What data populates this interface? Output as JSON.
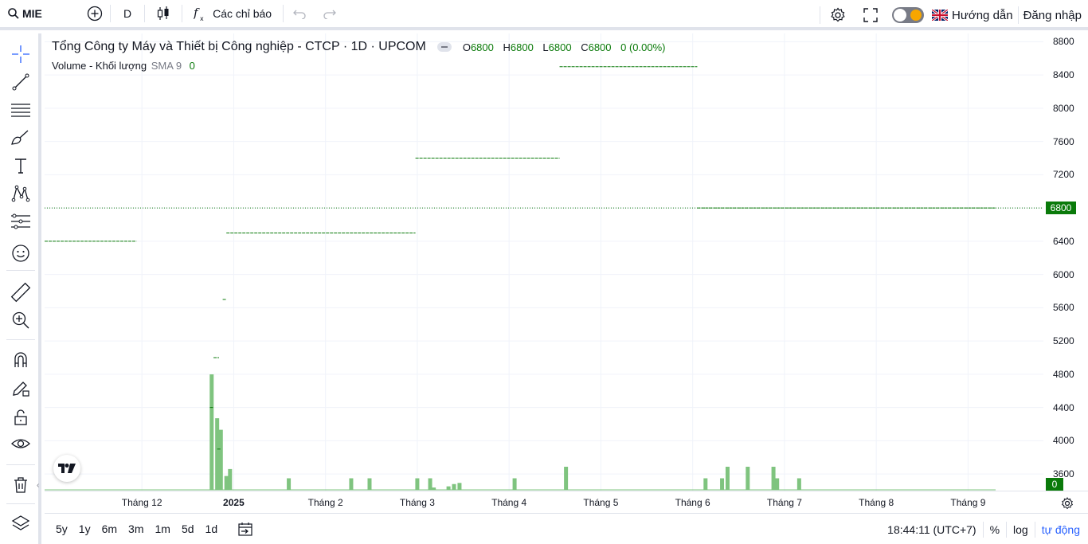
{
  "toolbar": {
    "symbol": "MIE",
    "interval": "D",
    "indicators_label": "Các chỉ báo",
    "guide_label": "Hướng dẫn",
    "login_label": "Đăng nhập"
  },
  "legend": {
    "title": "Tổng Công ty Máy và Thiết bị Công nghiệp - CTCP · 1D · UPCOM",
    "o_label": "O",
    "o_value": "6800",
    "h_label": "H",
    "h_value": "6800",
    "l_label": "L",
    "l_value": "6800",
    "c_label": "C",
    "c_value": "6800",
    "change": "0 (0.00%)",
    "volume_label": "Volume - Khối lượng",
    "sma_label": "SMA 9",
    "volume_value": "0"
  },
  "bottom": {
    "ranges": [
      "5y",
      "1y",
      "6m",
      "3m",
      "1m",
      "5d",
      "1d"
    ],
    "time": "18:44:11 (UTC+7)",
    "percent_label": "%",
    "log_label": "log",
    "auto_label": "tự động"
  },
  "colors": {
    "up": "#0a7a0a",
    "volume": "#7fc47f",
    "grid": "#f0f3fa"
  },
  "chart_data": {
    "type": "bar",
    "price_axis": {
      "ticks": [
        "8800",
        "8400",
        "8000",
        "7600",
        "7200",
        "6800",
        "6400",
        "6000",
        "5600",
        "5200",
        "4800",
        "4400",
        "4000",
        "3600"
      ],
      "last_price": "6800",
      "last_volume": "0",
      "ylim": [
        3400,
        8900
      ]
    },
    "time_axis": {
      "ticks": [
        "Tháng 12",
        "2025",
        "Tháng 2",
        "Tháng 3",
        "Tháng 4",
        "Tháng 5",
        "Tháng 6",
        "Tháng 7",
        "Tháng 8",
        "Tháng 9"
      ],
      "tick_positions": [
        0,
        1,
        2,
        3,
        4,
        5,
        6,
        7,
        8,
        9
      ],
      "range_months": [
        -1.06,
        9.3
      ]
    },
    "price_segments": [
      {
        "from": -1.06,
        "to": -0.06,
        "price": 6400
      },
      {
        "from": 0.82,
        "to": 0.86,
        "price": 3900
      },
      {
        "from": 0.74,
        "to": 0.78,
        "price": 4400
      },
      {
        "from": 0.78,
        "to": 0.84,
        "price": 5000
      },
      {
        "from": 0.88,
        "to": 0.92,
        "price": 5700
      },
      {
        "from": 0.92,
        "to": 2.98,
        "price": 6500
      },
      {
        "from": 2.98,
        "to": 4.55,
        "price": 7400
      },
      {
        "from": 4.55,
        "to": 6.05,
        "price": 8500
      },
      {
        "from": 6.05,
        "to": 9.3,
        "price": 6800
      }
    ],
    "volume_bars": [
      {
        "x": 0.76,
        "v": 100
      },
      {
        "x": 0.82,
        "v": 62
      },
      {
        "x": 0.86,
        "v": 52
      },
      {
        "x": 0.92,
        "v": 12
      },
      {
        "x": 0.96,
        "v": 18
      },
      {
        "x": 1.6,
        "v": 10
      },
      {
        "x": 2.28,
        "v": 10
      },
      {
        "x": 2.48,
        "v": 10
      },
      {
        "x": 3.0,
        "v": 10
      },
      {
        "x": 3.14,
        "v": 10
      },
      {
        "x": 3.18,
        "v": 2
      },
      {
        "x": 3.34,
        "v": 3
      },
      {
        "x": 3.4,
        "v": 5
      },
      {
        "x": 3.46,
        "v": 6
      },
      {
        "x": 4.06,
        "v": 10
      },
      {
        "x": 4.62,
        "v": 20
      },
      {
        "x": 6.14,
        "v": 10
      },
      {
        "x": 6.32,
        "v": 10
      },
      {
        "x": 6.38,
        "v": 20
      },
      {
        "x": 6.6,
        "v": 20
      },
      {
        "x": 6.88,
        "v": 20
      },
      {
        "x": 6.92,
        "v": 10
      },
      {
        "x": 7.16,
        "v": 10
      }
    ]
  }
}
